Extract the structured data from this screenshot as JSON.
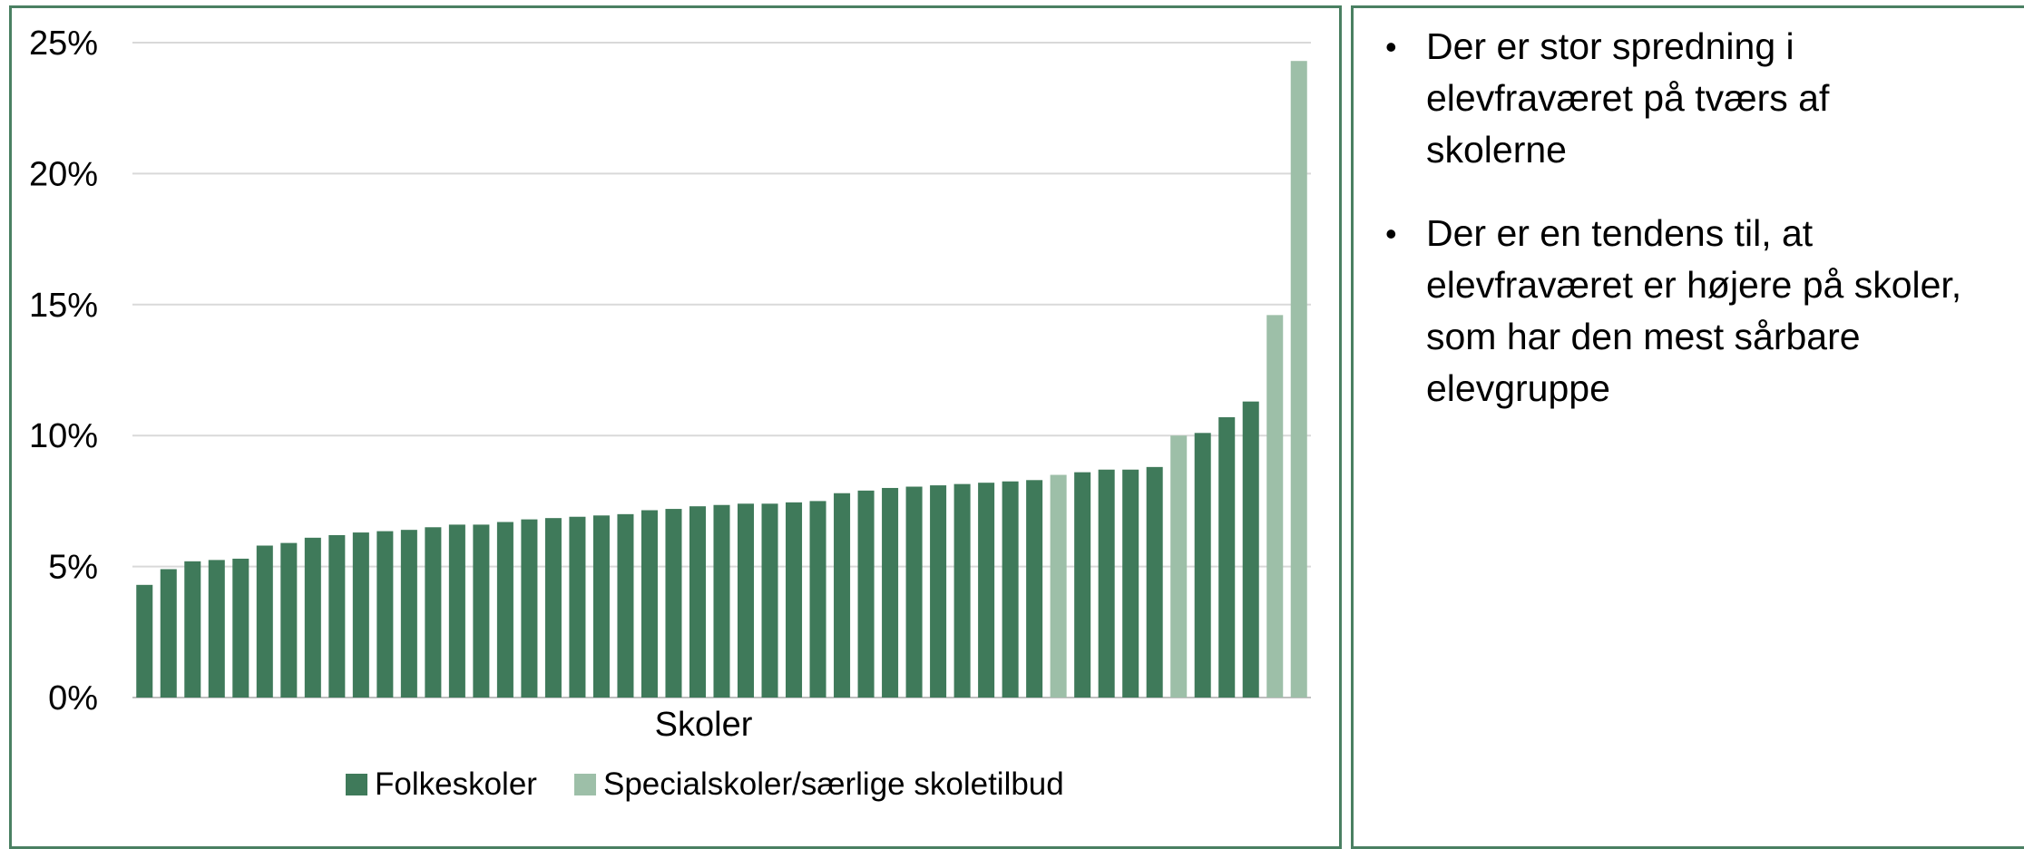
{
  "chart_data": {
    "type": "bar",
    "xlabel": "Skoler",
    "ylabel": "",
    "ylim": [
      0,
      0.25
    ],
    "yticks": [
      "0%",
      "5%",
      "10%",
      "15%",
      "20%",
      "25%"
    ],
    "grid": true,
    "legend_position": "bottom",
    "series": [
      {
        "name": "Folkeskoler",
        "color": "#3f7a5a"
      },
      {
        "name": "Specialskoler/særlige skoletilbud",
        "color": "#9dbfa8"
      }
    ],
    "values": [
      0.043,
      0.049,
      0.052,
      0.0525,
      0.053,
      0.058,
      0.059,
      0.061,
      0.062,
      0.063,
      0.0635,
      0.064,
      0.065,
      0.066,
      0.066,
      0.067,
      0.068,
      0.0685,
      0.069,
      0.0695,
      0.07,
      0.0715,
      0.072,
      0.073,
      0.0735,
      0.074,
      0.074,
      0.0745,
      0.075,
      0.078,
      0.079,
      0.08,
      0.0805,
      0.081,
      0.0815,
      0.082,
      0.0825,
      0.083,
      0.085,
      0.086,
      0.087,
      0.087,
      0.088,
      0.1,
      0.101,
      0.107,
      0.113,
      0.146,
      0.243
    ],
    "groups": [
      0,
      0,
      0,
      0,
      0,
      0,
      0,
      0,
      0,
      0,
      0,
      0,
      0,
      0,
      0,
      0,
      0,
      0,
      0,
      0,
      0,
      0,
      0,
      0,
      0,
      0,
      0,
      0,
      0,
      0,
      0,
      0,
      0,
      0,
      0,
      0,
      0,
      0,
      1,
      0,
      0,
      0,
      0,
      1,
      0,
      0,
      0,
      1,
      1
    ]
  },
  "bullets": [
    "Der er stor spredning i elevfraværet på tværs af skolerne",
    "Der er en tendens til, at elevfraværet er højere på skoler, som har den mest sårbare elevgruppe"
  ],
  "bullet_symbol": "•"
}
